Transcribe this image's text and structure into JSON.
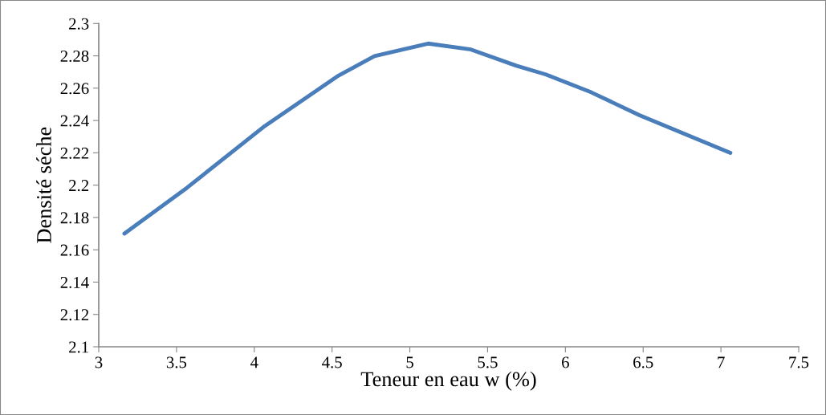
{
  "chart_data": {
    "type": "line",
    "xlabel": "Teneur en eau w (%)",
    "ylabel": "Densité séche",
    "x": [
      3.165,
      3.569,
      4.068,
      4.533,
      4.773,
      5.117,
      5.393,
      5.685,
      5.874,
      6.167,
      6.476,
      7.061
    ],
    "series": [
      {
        "color": "#4a7ebb",
        "values": [
          2.17,
          2.1985,
          2.2366,
          2.2673,
          2.2798,
          2.2876,
          2.2839,
          2.2739,
          2.2685,
          2.2574,
          2.2433,
          2.22
        ]
      }
    ],
    "xlim": [
      3,
      7.5
    ],
    "xticks": [
      3,
      3.5,
      4,
      4.5,
      5,
      5.5,
      6,
      6.5,
      7,
      7.5
    ],
    "ylim": [
      2.1,
      2.3
    ],
    "yticks": [
      2.1,
      2.12,
      2.14,
      2.16,
      2.18,
      2.2,
      2.22,
      2.24,
      2.26,
      2.28,
      2.3
    ],
    "grid": false,
    "legend": false,
    "marker": "none",
    "line_style": "solid"
  }
}
